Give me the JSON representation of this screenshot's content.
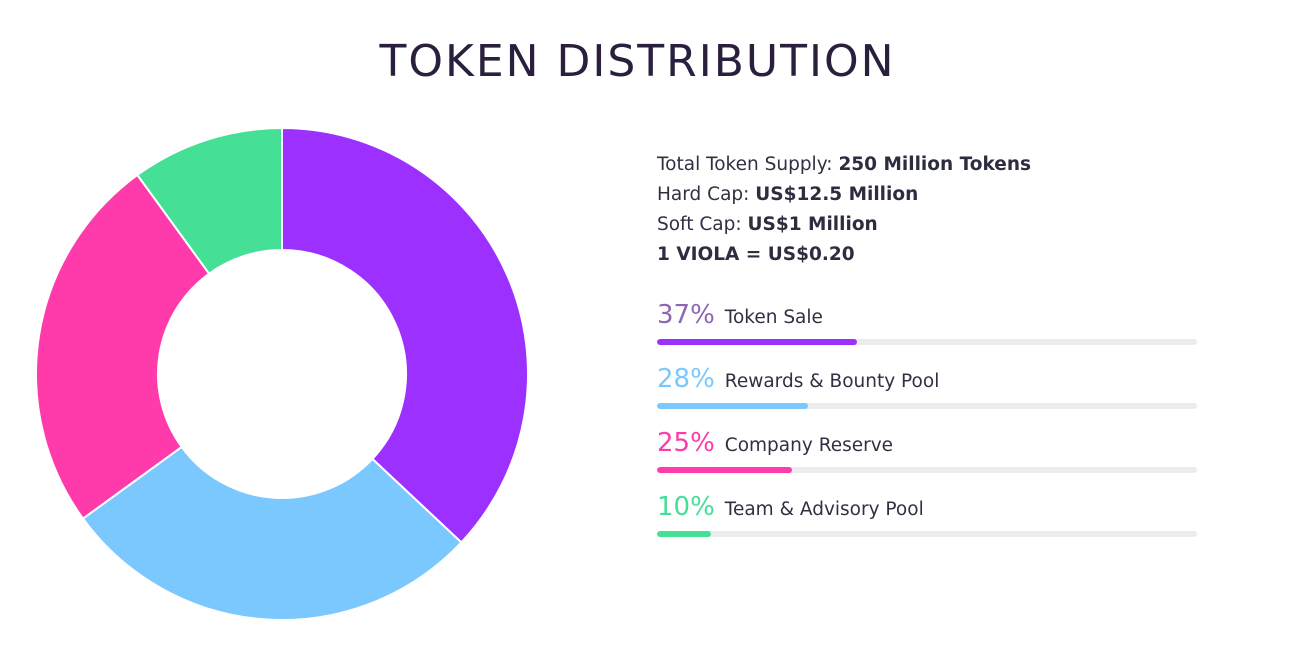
{
  "title": "TOKEN DISTRIBUTION",
  "supply": {
    "total_label": "Total Token Supply:",
    "total_value": "250 Million Tokens",
    "hardcap_label": "Hard Cap:",
    "hardcap_value": "US$12.5 Million",
    "softcap_label": "Soft Cap:",
    "softcap_value": "US$1 Million",
    "rate": "1 VIOLA = US$0.20"
  },
  "chart_data": {
    "type": "pie",
    "categories": [
      "Token Sale",
      "Rewards & Bounty Pool",
      "Company Reserve",
      "Team & Advisory Pool"
    ],
    "values": [
      37,
      28,
      25,
      10
    ],
    "colors": [
      "#9b30ff",
      "#7bc8ff",
      "#ff3aaa",
      "#46df96"
    ],
    "donut": true
  },
  "allocations": [
    {
      "percent": "37%",
      "label": "Token Sale",
      "fraction": 0.37,
      "color": "#9b30ff",
      "pct_color": "#8e67b4"
    },
    {
      "percent": "28%",
      "label": "Rewards & Bounty Pool",
      "fraction": 0.28,
      "color": "#7bc8ff",
      "pct_color": "#7bc8ff"
    },
    {
      "percent": "25%",
      "label": "Company Reserve",
      "fraction": 0.25,
      "color": "#ff3aaa",
      "pct_color": "#ff3aaa"
    },
    {
      "percent": "10%",
      "label": "Team & Advisory Pool",
      "fraction": 0.1,
      "color": "#46df96",
      "pct_color": "#46df96"
    }
  ]
}
